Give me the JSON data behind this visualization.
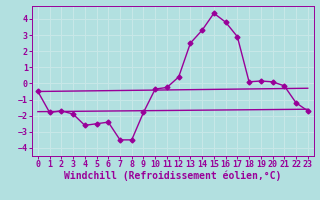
{
  "xlabel": "Windchill (Refroidissement éolien,°C)",
  "bg_color": "#b2e0e0",
  "grid_color": "#c8e8e8",
  "line_color": "#990099",
  "xlim": [
    -0.5,
    23.5
  ],
  "ylim": [
    -4.5,
    4.8
  ],
  "xticks": [
    0,
    1,
    2,
    3,
    4,
    5,
    6,
    7,
    8,
    9,
    10,
    11,
    12,
    13,
    14,
    15,
    16,
    17,
    18,
    19,
    20,
    21,
    22,
    23
  ],
  "yticks": [
    -4,
    -3,
    -2,
    -1,
    0,
    1,
    2,
    3,
    4
  ],
  "line1_x": [
    0,
    1,
    2,
    3,
    4,
    5,
    6,
    7,
    8,
    9,
    10,
    11,
    12,
    13,
    14,
    15,
    16,
    17,
    18,
    19,
    20,
    21,
    22,
    23
  ],
  "line1_y": [
    -0.5,
    -1.8,
    -1.7,
    -1.9,
    -2.6,
    -2.5,
    -2.4,
    -3.5,
    -3.5,
    -1.8,
    -0.35,
    -0.25,
    0.4,
    2.5,
    3.3,
    4.35,
    3.8,
    2.9,
    0.1,
    0.15,
    0.1,
    -0.15,
    -1.2,
    -1.7
  ],
  "line2_x": [
    0,
    23
  ],
  "line2_y": [
    -1.75,
    -1.6
  ],
  "line3_x": [
    0,
    23
  ],
  "line3_y": [
    -0.5,
    -0.3
  ],
  "marker": "D",
  "marker_size": 2.5,
  "line_width": 1.0,
  "xlabel_fontsize": 7,
  "tick_fontsize": 6
}
